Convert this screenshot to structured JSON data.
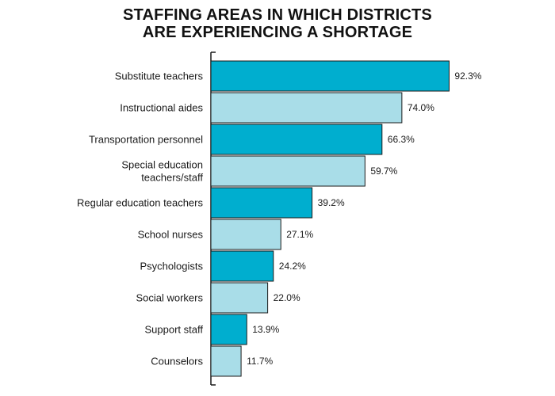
{
  "chart_data": {
    "type": "bar",
    "orientation": "horizontal",
    "title_lines": [
      "STAFFING AREAS IN WHICH DISTRICTS",
      "ARE EXPERIENCING A SHORTAGE"
    ],
    "categories": [
      [
        "Substitute teachers"
      ],
      [
        "Instructional aides"
      ],
      [
        "Transportation personnel"
      ],
      [
        "Special education",
        "teachers/staff"
      ],
      [
        "Regular education teachers"
      ],
      [
        "School nurses"
      ],
      [
        "Psychologists"
      ],
      [
        "Social workers"
      ],
      [
        "Support staff"
      ],
      [
        "Counselors"
      ]
    ],
    "values": [
      92.3,
      74.0,
      66.3,
      59.7,
      39.2,
      27.1,
      24.2,
      22.0,
      13.9,
      11.7
    ],
    "value_labels": [
      "92.3%",
      "74.0%",
      "66.3%",
      "59.7%",
      "39.2%",
      "27.1%",
      "24.2%",
      "22.0%",
      "13.9%",
      "11.7%"
    ],
    "xlim": [
      0,
      100
    ],
    "grid": false,
    "legend": "none",
    "colors": {
      "dark_bar": "#00AECF",
      "light_bar": "#A9DDE8",
      "bar_stroke": "#1a1a1a",
      "axis": "#1a1a1a"
    }
  }
}
